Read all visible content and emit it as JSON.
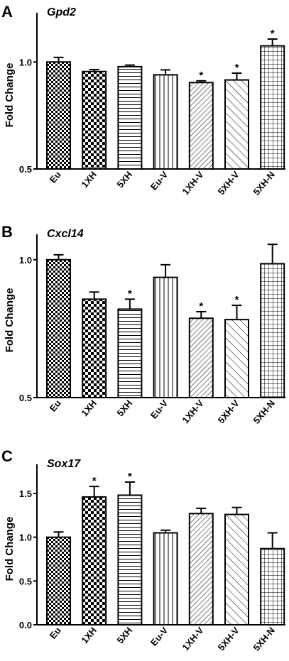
{
  "figure": {
    "ylabel": "Fold Change",
    "categories": [
      "Eu",
      "1XH",
      "5XH",
      "Eu-V",
      "1XH-V",
      "5XH-V",
      "5XH-N"
    ],
    "patterns": [
      "checker-fine",
      "checker",
      "horizontal",
      "vertical",
      "diag-fine",
      "diag-wide",
      "grid"
    ]
  },
  "chart_data": [
    {
      "type": "bar",
      "panel": "A",
      "title": "Gpd2",
      "ylabel": "Fold Change",
      "yscale": "log",
      "ylim": [
        0.5,
        1.35
      ],
      "yticks": [
        "0.5",
        "1.0"
      ],
      "categories": [
        "Eu",
        "1XH",
        "5XH",
        "Eu-V",
        "1XH-V",
        "5XH-V",
        "5XH-N"
      ],
      "values": [
        1.0,
        0.94,
        0.97,
        0.92,
        0.875,
        0.89,
        1.11
      ],
      "errors": [
        0.03,
        0.012,
        0.01,
        0.03,
        0.01,
        0.04,
        0.05
      ],
      "significant": [
        false,
        false,
        false,
        false,
        true,
        true,
        true
      ],
      "significance_marker": "*"
    },
    {
      "type": "bar",
      "panel": "B",
      "title": "Cxcl14",
      "ylabel": "Fold Change",
      "yscale": "log",
      "ylim": [
        0.5,
        1.12
      ],
      "yticks": [
        "0.5",
        "1.0"
      ],
      "categories": [
        "Eu",
        "1XH",
        "5XH",
        "Eu-V",
        "1XH-V",
        "5XH-V",
        "5XH-N"
      ],
      "values": [
        1.0,
        0.82,
        0.78,
        0.915,
        0.745,
        0.74,
        0.98
      ],
      "errors": [
        0.025,
        0.03,
        0.04,
        0.06,
        0.025,
        0.055,
        0.1
      ],
      "significant": [
        false,
        false,
        true,
        false,
        true,
        true,
        false
      ],
      "significance_marker": "*"
    },
    {
      "type": "bar",
      "panel": "C",
      "title": "Sox17",
      "ylabel": "Fold Change",
      "yscale": "linear",
      "ylim": [
        0.0,
        1.8
      ],
      "yticks": [
        "0.0",
        "0.5",
        "1.0",
        "1.5"
      ],
      "categories": [
        "Eu",
        "1XH",
        "5XH",
        "Eu-V",
        "1XH-V",
        "5XH-V",
        "5XH-N"
      ],
      "values": [
        1.0,
        1.46,
        1.48,
        1.05,
        1.27,
        1.26,
        0.87
      ],
      "errors": [
        0.06,
        0.12,
        0.15,
        0.03,
        0.06,
        0.08,
        0.18
      ],
      "significant": [
        false,
        true,
        true,
        false,
        false,
        false,
        false
      ],
      "significance_marker": "*"
    }
  ]
}
